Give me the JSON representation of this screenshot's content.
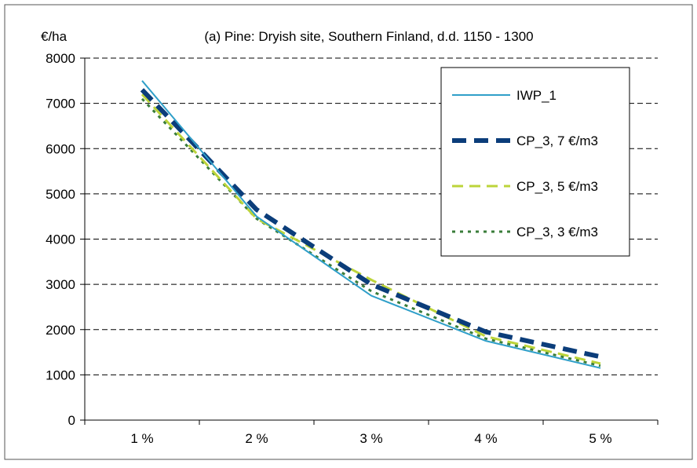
{
  "chart_data": {
    "type": "line",
    "title": "(a) Pine: Dryish site, Southern Finland, d.d. 1150 - 1300",
    "ylabel": "€/ha",
    "xlabel": "",
    "categories": [
      "1 %",
      "2 %",
      "3 %",
      "4 %",
      "5 %"
    ],
    "ylim": [
      0,
      8000
    ],
    "yticks": [
      "0",
      "1000",
      "2000",
      "3000",
      "4000",
      "5000",
      "6000",
      "7000",
      "8000"
    ],
    "grid": "horizontal dashed",
    "legend_position": "top-right",
    "series": [
      {
        "name": "IWP_1",
        "values": [
          7500,
          4500,
          2750,
          1750,
          1150
        ],
        "color": "#2f9fc9",
        "style": "solid"
      },
      {
        "name": "CP_3, 7 €/m3",
        "values": [
          7300,
          4650,
          3000,
          1950,
          1400
        ],
        "color": "#0b3d7a",
        "style": "long-dash"
      },
      {
        "name": "CP_3, 5 €/m3",
        "values": [
          7200,
          4450,
          3100,
          1850,
          1250
        ],
        "color": "#bcd43a",
        "style": "dash"
      },
      {
        "name": "CP_3, 3 €/m3",
        "values": [
          7100,
          4450,
          2850,
          1800,
          1200
        ],
        "color": "#3a7d3a",
        "style": "dot"
      }
    ]
  }
}
